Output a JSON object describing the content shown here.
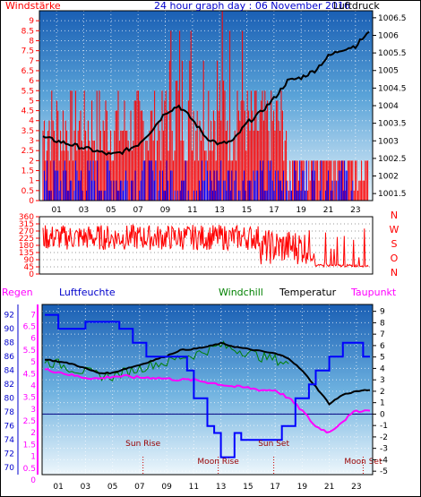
{
  "chart_data": [
    {
      "type": "line",
      "title": "24 hour graph day : 06 November 2016",
      "left_axis_label": "Windstärke",
      "right_axis_label": "Luftdruck",
      "left_ticks": [
        "9",
        "8.5",
        "8",
        "7.5",
        "7",
        "6.5",
        "6",
        "5.5",
        "5",
        "4.5",
        "4",
        "3.5",
        "3",
        "2.5",
        "2",
        "1.5",
        "1",
        "0.5",
        "0"
      ],
      "right_ticks": [
        "1006.5",
        "1006",
        "1005.5",
        "1005",
        "1004.5",
        "1004",
        "1003.5",
        "1003",
        "1002.5",
        "1002",
        "1001.5"
      ],
      "x_ticks": [
        "01",
        "03",
        "05",
        "07",
        "09",
        "11",
        "13",
        "15",
        "17",
        "19",
        "21",
        "23"
      ],
      "ylim_left": [
        0,
        9.5
      ],
      "ylim_right": [
        1001.3,
        1006.7
      ],
      "series": [
        {
          "key": "pressure",
          "color": "#000000",
          "x": [
            0,
            1,
            2,
            3,
            4,
            5,
            6,
            7,
            8,
            9,
            10,
            11,
            12,
            13,
            14,
            15,
            16,
            17,
            18,
            19,
            20,
            21,
            22,
            23,
            24
          ],
          "values": [
            1003.1,
            1003.0,
            1002.9,
            1002.8,
            1002.7,
            1002.6,
            1002.7,
            1002.9,
            1003.3,
            1003.8,
            1004.0,
            1003.6,
            1003.1,
            1002.9,
            1003.0,
            1003.5,
            1003.8,
            1004.2,
            1004.7,
            1004.8,
            1005.0,
            1005.4,
            1005.6,
            1005.7,
            1006.1
          ]
        },
        {
          "key": "wind_gust",
          "color": "#ff0000",
          "note_values": "Böen 2.0–9.5"
        },
        {
          "key": "wind_avg",
          "color": "#0000ff",
          "note_values": "Mittel 0–2"
        }
      ]
    },
    {
      "type": "scatter",
      "left_ticks": [
        "360",
        "315",
        "270",
        "225",
        "180",
        "135",
        "90",
        "45",
        "0"
      ],
      "right_letters": [
        "N",
        "W",
        "S",
        "O",
        "N"
      ],
      "ylim": [
        0,
        360
      ],
      "series": [
        {
          "key": "wind_direction",
          "color": "#ff0000"
        }
      ]
    },
    {
      "type": "line",
      "headers": {
        "regen": "Regen",
        "luftfeuchte": "Luftfeuchte",
        "windchill": "Windchill",
        "temperatur": "Temperatur",
        "taupunkt": "Taupunkt"
      },
      "rain_ticks": [
        "7",
        "6.5",
        "6",
        "5.5",
        "5",
        "4.5",
        "4",
        "3.5",
        "3",
        "2.5",
        "2",
        "1.5",
        "1",
        "0.5",
        "0"
      ],
      "humidity_ticks": [
        "92",
        "90",
        "88",
        "86",
        "84",
        "82",
        "80",
        "78",
        "76",
        "74",
        "72",
        "70"
      ],
      "temp_ticks": [
        "9",
        "8",
        "7",
        "6",
        "5",
        "4",
        "3",
        "2",
        "1",
        "0",
        "-1",
        "-2",
        "-3",
        "-4",
        "-5"
      ],
      "ylim_temp": [
        -5.3,
        9.6
      ],
      "ylim_humidity": [
        69,
        93.5
      ],
      "series": [
        {
          "key": "temperature",
          "color": "#000000",
          "x": [
            0,
            1,
            2,
            3,
            4,
            5,
            6,
            7,
            8,
            9,
            10,
            11,
            12,
            13,
            14,
            15,
            16,
            17,
            18,
            19,
            20,
            21,
            22,
            23,
            24
          ],
          "values": [
            4.8,
            4.6,
            4.4,
            4.0,
            3.6,
            3.6,
            4.0,
            4.3,
            4.7,
            5.1,
            5.6,
            5.7,
            5.9,
            6.2,
            5.9,
            5.7,
            5.5,
            5.3,
            4.9,
            3.8,
            2.4,
            0.9,
            1.7,
            2.0,
            2.1
          ]
        },
        {
          "key": "windchill",
          "color": "#008000",
          "x": [
            0,
            1,
            2,
            3,
            4,
            5,
            6,
            7,
            8,
            9,
            10,
            11,
            12,
            13,
            14,
            15,
            16,
            17,
            18
          ],
          "values": [
            4.6,
            4.4,
            4.0,
            3.7,
            3.4,
            3.3,
            3.7,
            4.0,
            4.4,
            4.5,
            5.0,
            5.2,
            5.6,
            6.0,
            5.7,
            5.4,
            5.0,
            4.8,
            4.4
          ]
        },
        {
          "key": "dewpoint",
          "color": "#ff00ff",
          "x": [
            0,
            1,
            2,
            3,
            4,
            5,
            6,
            7,
            8,
            9,
            10,
            11,
            12,
            13,
            14,
            15,
            16,
            17,
            18,
            19,
            20,
            21,
            22,
            23,
            24
          ],
          "values": [
            3.9,
            3.7,
            3.4,
            3.2,
            3.1,
            3.3,
            3.3,
            3.2,
            3.2,
            3.1,
            3.0,
            3.0,
            2.8,
            2.6,
            2.4,
            2.3,
            2.1,
            2.1,
            1.4,
            0.3,
            -1.1,
            -1.6,
            -0.6,
            0.3,
            0.3
          ]
        },
        {
          "key": "humidity",
          "color": "#0000ff",
          "x": [
            0,
            1,
            1.5,
            2.5,
            3,
            4,
            5.5,
            6.5,
            7.5,
            8.5,
            9.5,
            10.5,
            11,
            12,
            12.5,
            13,
            13.5,
            14,
            14.5,
            15.5,
            16.5,
            17.5,
            18.5,
            19.5,
            20,
            21,
            22,
            22.5,
            23.5,
            24
          ],
          "values": [
            92,
            90,
            90,
            90,
            91,
            91,
            90,
            88,
            86,
            86,
            86,
            84,
            80,
            76,
            75,
            71.5,
            71.5,
            75,
            74,
            74,
            74,
            76,
            80,
            82,
            84,
            86,
            88,
            88,
            86,
            86
          ]
        }
      ],
      "dewpoint_line_temp": 0.0,
      "events": [
        {
          "label": "Sun Rise",
          "hour": 7.25
        },
        {
          "label": "Sun Set",
          "hour": 16.9
        },
        {
          "label": "Moon Rise",
          "hour": 12.8
        },
        {
          "label": "Moon Set",
          "hour": 23.5
        }
      ],
      "bottom_x_ticks": [
        "01",
        "03",
        "05",
        "07",
        "09",
        "11",
        "13",
        "15",
        "17",
        "19",
        "21",
        "23"
      ]
    }
  ]
}
